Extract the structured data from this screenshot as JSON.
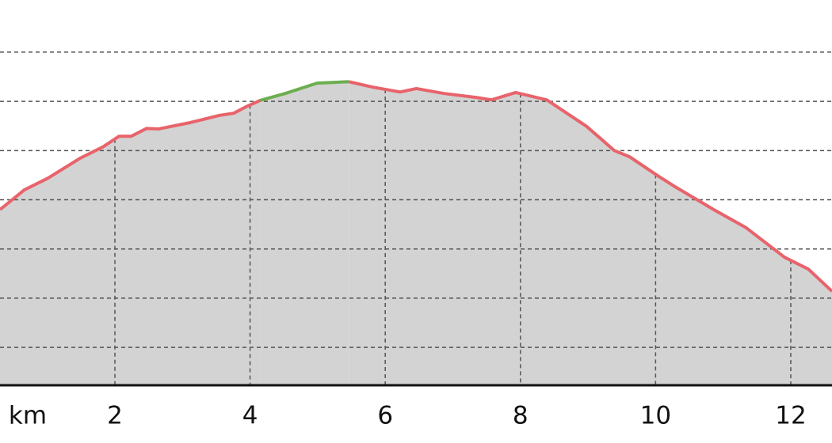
{
  "chart_data": {
    "type": "area-line",
    "x_label": "km",
    "x": [
      0.3,
      0.66,
      1.01,
      1.48,
      1.83,
      2.06,
      2.24,
      2.47,
      2.65,
      3.12,
      3.53,
      3.76,
      3.94,
      4.15,
      4.52,
      4.99,
      5.46,
      5.81,
      6.22,
      6.46,
      6.87,
      7.34,
      7.57,
      7.93,
      8.39,
      8.98,
      9.39,
      9.62,
      10.03,
      10.27,
      10.86,
      11.33,
      11.91,
      12.26,
      12.61
    ],
    "series": [
      {
        "color": "#e8636b",
        "values": [
          3.8,
          4.2,
          4.44,
          4.84,
          5.08,
          5.29,
          5.29,
          5.45,
          5.44,
          5.57,
          5.71,
          5.76,
          5.89,
          6.02,
          null,
          null,
          6.4,
          6.29,
          6.19,
          6.26,
          6.16,
          6.08,
          6.03,
          6.18,
          6.03,
          5.49,
          5.0,
          4.87,
          4.49,
          4.28,
          3.8,
          3.44,
          2.83,
          2.59,
          2.14
        ]
      },
      {
        "color": "#6cae4f",
        "values": [
          null,
          null,
          null,
          null,
          null,
          null,
          null,
          null,
          null,
          null,
          null,
          null,
          null,
          6.02,
          6.16,
          6.37,
          6.4,
          null,
          null,
          null,
          null,
          null,
          null,
          null,
          null,
          null,
          null,
          null,
          null,
          null,
          null,
          null,
          null,
          null,
          null
        ]
      }
    ],
    "area_color": "#d3d3d3",
    "xlim": [
      0.3,
      12.61
    ],
    "xticks": [
      2,
      4,
      6,
      8,
      10,
      12
    ],
    "ylim": [
      0.23,
      8.06
    ],
    "yticks": [
      1,
      2,
      3,
      4,
      5,
      6,
      7
    ],
    "grid": true
  }
}
